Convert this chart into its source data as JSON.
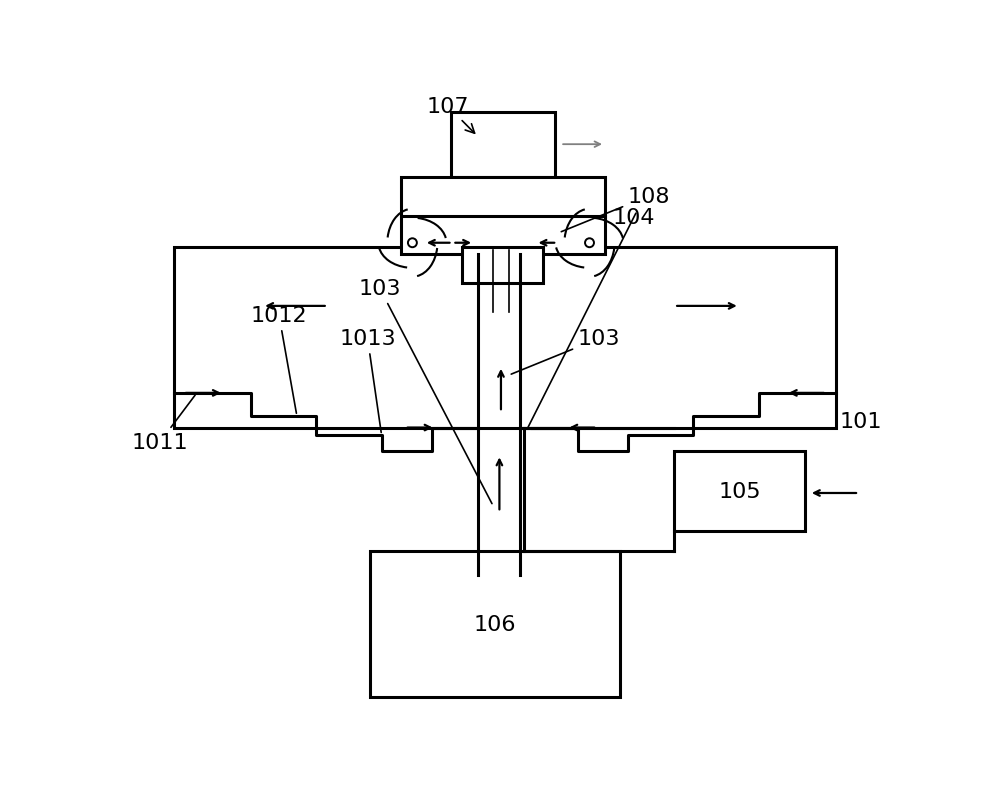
{
  "bg": "#ffffff",
  "lc": "#000000",
  "lw": 2.2,
  "lw_thin": 1.2,
  "fs": 16,
  "fig_w": 10.0,
  "fig_h": 8.12,
  "xmax": 10.0,
  "ymax": 8.12
}
